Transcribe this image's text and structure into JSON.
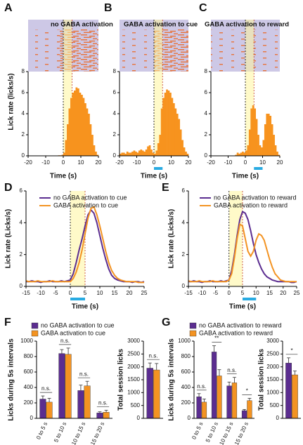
{
  "chart_data": [
    {
      "type": "histogram",
      "label": "A",
      "title": "no  GABA activation",
      "color": "#f7931e",
      "bins": [
        -20,
        -19,
        -18,
        -17,
        -16,
        -15,
        -14,
        -13,
        -12,
        -11,
        -10,
        -9,
        -8,
        -7,
        -6,
        -5,
        -4,
        -3,
        -2,
        -1,
        0,
        1,
        2,
        3,
        4,
        5,
        6,
        7,
        8,
        9,
        10,
        11,
        12,
        13,
        14,
        15,
        16,
        17,
        18,
        19,
        20
      ],
      "values": [
        0,
        0,
        0,
        0,
        0,
        0,
        0,
        0,
        0,
        0,
        0,
        0,
        0,
        0,
        0,
        0,
        0,
        0.05,
        0.05,
        0.1,
        0.3,
        1.5,
        3,
        4.5,
        5.5,
        6,
        6.2,
        6.5,
        6.4,
        6,
        5.8,
        5.5,
        5,
        4.5,
        4,
        3,
        2,
        1,
        0.4,
        0.1
      ],
      "xlim": [
        -20,
        20
      ],
      "xticks": [
        -20,
        -10,
        0,
        10,
        20
      ],
      "ylim": [
        0,
        8
      ],
      "yticks": [
        0,
        2,
        4,
        6,
        8
      ],
      "xlabel": "Time (s)",
      "ylabel": "Lick rate (licks/s)",
      "highlight": [
        0,
        5
      ]
    },
    {
      "type": "histogram",
      "label": "B",
      "title": "GABA activation to cue",
      "color": "#f7931e",
      "bins": [
        -20,
        -19,
        -18,
        -17,
        -16,
        -15,
        -14,
        -13,
        -12,
        -11,
        -10,
        -9,
        -8,
        -7,
        -6,
        -5,
        -4,
        -3,
        -2,
        -1,
        0,
        1,
        2,
        3,
        4,
        5,
        6,
        7,
        8,
        9,
        10,
        11,
        12,
        13,
        14,
        15,
        16,
        17,
        18,
        19,
        20
      ],
      "values": [
        0.2,
        0.3,
        0.3,
        0.2,
        0.4,
        0.3,
        0.3,
        0.4,
        0.5,
        0.4,
        0.3,
        0.5,
        0.6,
        0.5,
        0.4,
        0.6,
        0.9,
        1,
        0.6,
        0.3,
        0.2,
        0.5,
        1.2,
        2,
        4.5,
        5.5,
        6,
        6.3,
        6.2,
        6,
        5.5,
        5,
        4.5,
        4,
        3.5,
        2.5,
        1.5,
        0.8,
        0.4,
        0.2
      ],
      "xlim": [
        -20,
        20
      ],
      "xticks": [
        -20,
        -10,
        0,
        10,
        20
      ],
      "ylim": [
        0,
        8
      ],
      "yticks": [
        0,
        2,
        4,
        6,
        8
      ],
      "xlabel": "Time (s)",
      "highlight": [
        0,
        5
      ],
      "stim": [
        0,
        5
      ],
      "stim_color": "#29abe2"
    },
    {
      "type": "histogram",
      "label": "C",
      "title": "GABA activation to reward",
      "color": "#f7931e",
      "bins": [
        -20,
        -19,
        -18,
        -17,
        -16,
        -15,
        -14,
        -13,
        -12,
        -11,
        -10,
        -9,
        -8,
        -7,
        -6,
        -5,
        -4,
        -3,
        -2,
        -1,
        0,
        1,
        2,
        3,
        4,
        5,
        6,
        7,
        8,
        9,
        10,
        11,
        12,
        13,
        14,
        15,
        16,
        17,
        18,
        19,
        20
      ],
      "values": [
        0,
        0,
        0,
        0,
        0,
        0,
        0,
        0,
        0,
        0,
        0,
        0,
        0,
        0,
        0.1,
        0.3,
        0.2,
        0.3,
        0.4,
        0.3,
        0.5,
        1,
        2.5,
        4.5,
        4.8,
        4.5,
        3.5,
        2,
        1,
        0.8,
        1.5,
        3,
        4,
        4,
        3.8,
        3,
        2,
        1,
        0.4,
        0.1
      ],
      "xlim": [
        -20,
        20
      ],
      "xticks": [
        -20,
        -10,
        0,
        10,
        20
      ],
      "ylim": [
        0,
        8
      ],
      "yticks": [
        0,
        2,
        4,
        6,
        8
      ],
      "xlabel": "Time (s)",
      "highlight": [
        0,
        5
      ],
      "stim": [
        5,
        10
      ],
      "stim_color": "#29abe2"
    },
    {
      "type": "line",
      "label": "D",
      "x": [
        -15,
        -14,
        -13,
        -12,
        -11,
        -10,
        -9,
        -8,
        -7,
        -6,
        -5,
        -4,
        -3,
        -2,
        -1,
        0,
        1,
        2,
        3,
        4,
        5,
        6,
        7,
        8,
        9,
        10,
        11,
        12,
        13,
        14,
        15,
        16,
        17,
        18,
        19,
        20,
        21,
        22,
        23,
        24,
        25
      ],
      "series": [
        {
          "name": "no GABA activation to cue",
          "color": "#5b2d90",
          "values": [
            0.3,
            0.3,
            0.35,
            0.3,
            0.3,
            0.25,
            0.3,
            0.3,
            0.35,
            0.3,
            0.3,
            0.3,
            0.35,
            0.3,
            0.35,
            0.4,
            0.8,
            1.5,
            2.3,
            3.0,
            3.8,
            4.5,
            4.8,
            4.6,
            4,
            3.2,
            2.4,
            1.7,
            1.1,
            0.7,
            0.5,
            0.4,
            0.35,
            0.3,
            0.3,
            0.3,
            0.25,
            0.3,
            0.3,
            0.25,
            0.3
          ]
        },
        {
          "name": "GABA activation to cue",
          "color": "#f39322",
          "values": [
            0.35,
            0.3,
            0.3,
            0.3,
            0.35,
            0.3,
            0.3,
            0.3,
            0.3,
            0.35,
            0.3,
            0.3,
            0.3,
            0.3,
            0.3,
            0.3,
            0.5,
            0.9,
            1.5,
            2.3,
            3.3,
            4.3,
            4.9,
            5,
            4.5,
            3.8,
            3,
            2.2,
            1.5,
            1,
            0.7,
            0.5,
            0.4,
            0.35,
            0.3,
            0.3,
            0.3,
            0.3,
            0.25,
            0.25,
            0.25
          ]
        }
      ],
      "xlim": [
        -15,
        25
      ],
      "xticks": [
        -15,
        -10,
        -5,
        0,
        5,
        10,
        15,
        20,
        25
      ],
      "ylim": [
        0,
        6
      ],
      "yticks": [
        0,
        2,
        4,
        6
      ],
      "xlabel": "Time (s)",
      "ylabel": "Lick rate (Licks/s)",
      "highlight": [
        0,
        5
      ],
      "stim": [
        0,
        5
      ],
      "stim_color": "#29abe2"
    },
    {
      "type": "line",
      "label": "E",
      "x": [
        -15,
        -14,
        -13,
        -12,
        -11,
        -10,
        -9,
        -8,
        -7,
        -6,
        -5,
        -4,
        -3,
        -2,
        -1,
        0,
        1,
        2,
        3,
        4,
        5,
        6,
        7,
        8,
        9,
        10,
        11,
        12,
        13,
        14,
        15,
        16,
        17,
        18,
        19,
        20,
        21,
        22,
        23,
        24,
        25
      ],
      "series": [
        {
          "name": "no GABA activation to reward",
          "color": "#5b2d90",
          "values": [
            0.3,
            0.3,
            0.35,
            0.3,
            0.3,
            0.25,
            0.3,
            0.3,
            0.35,
            0.3,
            0.3,
            0.3,
            0.35,
            0.3,
            0.35,
            0.4,
            1,
            2,
            3.2,
            4.2,
            4.7,
            4.6,
            4.2,
            3.5,
            2.7,
            2,
            1.5,
            1.1,
            0.8,
            0.6,
            0.5,
            0.4,
            0.35,
            0.3,
            0.3,
            0.3,
            0.3,
            0.3,
            0.25,
            0.25,
            0.3
          ]
        },
        {
          "name": "GABA activation to reward",
          "color": "#f39322",
          "values": [
            0.35,
            0.3,
            0.3,
            0.3,
            0.35,
            0.3,
            0.3,
            0.3,
            0.3,
            0.35,
            0.3,
            0.3,
            0.3,
            0.3,
            0.3,
            0.4,
            0.8,
            1.8,
            3,
            3.9,
            3.8,
            3,
            2.2,
            1.9,
            2.2,
            2.9,
            3.3,
            3.2,
            2.9,
            2.3,
            1.7,
            1.2,
            0.8,
            0.6,
            0.4,
            0.35,
            0.3,
            0.3,
            0.3,
            0.3,
            0.3
          ]
        }
      ],
      "xlim": [
        -15,
        25
      ],
      "xticks": [
        -15,
        -10,
        -5,
        0,
        5,
        10,
        15,
        20,
        25
      ],
      "ylim": [
        0,
        6
      ],
      "yticks": [
        0,
        2,
        4,
        6
      ],
      "xlabel": "Time (s)",
      "ylabel": "Lick rate (Licks/s)",
      "highlight": [
        0,
        5
      ],
      "stim": [
        5,
        10
      ],
      "stim_color": "#29abe2"
    },
    {
      "type": "bar",
      "label": "F",
      "categories": [
        "0 to 5 s",
        "5 to 10 s",
        "10 to 15 s",
        "15 to 20 s"
      ],
      "series": [
        {
          "name": "no GABA activation to cue",
          "color": "#5b2d90",
          "values": [
            250,
            840,
            360,
            70
          ],
          "errors": [
            40,
            50,
            70,
            15
          ]
        },
        {
          "name": "GABA activation to cue",
          "color": "#f39322",
          "values": [
            210,
            830,
            420,
            80
          ],
          "errors": [
            50,
            80,
            60,
            25
          ]
        }
      ],
      "annotations": [
        "n.s.",
        "n.s.",
        "n.s.",
        "n.s."
      ],
      "ylim": [
        0,
        1000
      ],
      "yticks": [
        0,
        200,
        400,
        600,
        800,
        1000
      ],
      "ylabel": "Licks during 5s intervals"
    },
    {
      "type": "bar",
      "categories": [
        null
      ],
      "series": [
        {
          "color": "#5b2d90",
          "values": [
            1950
          ],
          "errors": [
            200
          ]
        },
        {
          "color": "#f39322",
          "values": [
            1880
          ],
          "errors": [
            250
          ]
        }
      ],
      "annotations": [
        "n.s."
      ],
      "ylim": [
        0,
        3000
      ],
      "yticks": [
        0,
        500,
        1000,
        1500,
        2000,
        2500,
        3000
      ],
      "ylabel": "Total session licks"
    },
    {
      "type": "bar",
      "label": "G",
      "categories": [
        "0 to 5 s",
        "5 to 10 s",
        "10 to 15 s",
        "15 to 20 s"
      ],
      "series": [
        {
          "name": "no GABA activation to reward",
          "color": "#5b2d90",
          "values": [
            280,
            860,
            420,
            100
          ],
          "errors": [
            40,
            80,
            50,
            15
          ]
        },
        {
          "name": "GABA activation to reward",
          "color": "#f39322",
          "values": [
            210,
            550,
            460,
            230
          ],
          "errors": [
            40,
            80,
            70,
            30
          ]
        }
      ],
      "annotations": [
        "n.s.",
        "**",
        "n.s.",
        "*"
      ],
      "ylim": [
        0,
        1000
      ],
      "yticks": [
        0,
        200,
        400,
        600,
        800,
        1000
      ],
      "ylabel": "Licks during 5s intervals"
    },
    {
      "type": "bar",
      "categories": [
        null
      ],
      "series": [
        {
          "color": "#5b2d90",
          "values": [
            2150
          ],
          "errors": [
            200
          ]
        },
        {
          "color": "#f39322",
          "values": [
            1690
          ],
          "errors": [
            150
          ]
        }
      ],
      "annotations": [
        "*"
      ],
      "ylim": [
        0,
        3000
      ],
      "yticks": [
        0,
        500,
        1000,
        1500,
        2000,
        2500,
        3000
      ],
      "ylabel": "Total session licks"
    }
  ]
}
